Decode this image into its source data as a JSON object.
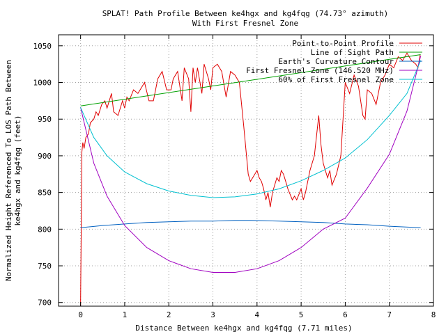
{
  "chart_data": {
    "type": "line",
    "title": "SPLAT! Path Profile Between ke4hgx and kg4fqg (74.73° azimuth)",
    "subtitle": "With First Fresnel Zone",
    "xlabel": "Distance Between ke4hgx and kg4fqg (7.71 miles)",
    "ylabel_line1": "Normalized Height Referenced To LOS Path Between",
    "ylabel_line2": "ke4hgx and kg4fqg (feet)",
    "xlim": [
      -0.5,
      8
    ],
    "ylim": [
      695,
      1065
    ],
    "xticks": [
      0,
      1,
      2,
      3,
      4,
      5,
      6,
      7,
      8
    ],
    "yticks": [
      700,
      750,
      800,
      850,
      900,
      950,
      1000,
      1050
    ],
    "grid": true,
    "legend_position": "top-right",
    "series": [
      {
        "name": "Point-to-Point Profile",
        "color": "#e00000",
        "points": [
          [
            0,
            695
          ],
          [
            0.03,
            905
          ],
          [
            0.05,
            918
          ],
          [
            0.08,
            910
          ],
          [
            0.12,
            925
          ],
          [
            0.18,
            930
          ],
          [
            0.22,
            945
          ],
          [
            0.3,
            950
          ],
          [
            0.35,
            960
          ],
          [
            0.4,
            955
          ],
          [
            0.48,
            970
          ],
          [
            0.55,
            975
          ],
          [
            0.6,
            965
          ],
          [
            0.7,
            985
          ],
          [
            0.75,
            960
          ],
          [
            0.85,
            955
          ],
          [
            0.95,
            975
          ],
          [
            1.0,
            965
          ],
          [
            1.05,
            980
          ],
          [
            1.1,
            975
          ],
          [
            1.2,
            990
          ],
          [
            1.3,
            985
          ],
          [
            1.4,
            995
          ],
          [
            1.45,
            1000
          ],
          [
            1.55,
            975
          ],
          [
            1.65,
            975
          ],
          [
            1.75,
            1005
          ],
          [
            1.85,
            1015
          ],
          [
            1.95,
            990
          ],
          [
            2.05,
            990
          ],
          [
            2.1,
            1005
          ],
          [
            2.2,
            1015
          ],
          [
            2.3,
            975
          ],
          [
            2.35,
            1020
          ],
          [
            2.45,
            1005
          ],
          [
            2.5,
            960
          ],
          [
            2.55,
            1020
          ],
          [
            2.6,
            1000
          ],
          [
            2.65,
            1020
          ],
          [
            2.75,
            985
          ],
          [
            2.8,
            1025
          ],
          [
            2.9,
            1005
          ],
          [
            2.95,
            990
          ],
          [
            3.0,
            1020
          ],
          [
            3.1,
            1025
          ],
          [
            3.2,
            1015
          ],
          [
            3.3,
            980
          ],
          [
            3.4,
            1015
          ],
          [
            3.5,
            1010
          ],
          [
            3.6,
            1000
          ],
          [
            3.7,
            940
          ],
          [
            3.8,
            875
          ],
          [
            3.85,
            865
          ],
          [
            3.95,
            875
          ],
          [
            4.0,
            880
          ],
          [
            4.05,
            870
          ],
          [
            4.1,
            865
          ],
          [
            4.15,
            855
          ],
          [
            4.2,
            840
          ],
          [
            4.25,
            850
          ],
          [
            4.3,
            830
          ],
          [
            4.35,
            850
          ],
          [
            4.45,
            870
          ],
          [
            4.5,
            865
          ],
          [
            4.55,
            880
          ],
          [
            4.6,
            875
          ],
          [
            4.65,
            865
          ],
          [
            4.7,
            855
          ],
          [
            4.8,
            840
          ],
          [
            4.85,
            845
          ],
          [
            4.9,
            840
          ],
          [
            5.0,
            855
          ],
          [
            5.05,
            840
          ],
          [
            5.1,
            850
          ],
          [
            5.2,
            880
          ],
          [
            5.3,
            900
          ],
          [
            5.4,
            955
          ],
          [
            5.45,
            915
          ],
          [
            5.5,
            890
          ],
          [
            5.55,
            880
          ],
          [
            5.6,
            870
          ],
          [
            5.65,
            880
          ],
          [
            5.7,
            860
          ],
          [
            5.8,
            875
          ],
          [
            5.9,
            900
          ],
          [
            6.0,
            1000
          ],
          [
            6.1,
            985
          ],
          [
            6.2,
            1010
          ],
          [
            6.3,
            995
          ],
          [
            6.4,
            955
          ],
          [
            6.45,
            950
          ],
          [
            6.5,
            990
          ],
          [
            6.6,
            985
          ],
          [
            6.7,
            970
          ],
          [
            6.8,
            1000
          ],
          [
            6.9,
            1010
          ],
          [
            7.0,
            1025
          ],
          [
            7.1,
            1020
          ],
          [
            7.2,
            1035
          ],
          [
            7.3,
            1030
          ],
          [
            7.4,
            1040
          ],
          [
            7.5,
            1030
          ],
          [
            7.6,
            1025
          ],
          [
            7.65,
            1020
          ],
          [
            7.7,
            1038
          ]
        ]
      },
      {
        "name": "Line of Sight Path",
        "color": "#00a000",
        "points": [
          [
            0,
            968
          ],
          [
            7.71,
            1038
          ]
        ]
      },
      {
        "name": "Earth's Curvature Contour",
        "color": "#0060c0",
        "points": [
          [
            0,
            802
          ],
          [
            0.5,
            805
          ],
          [
            1,
            807
          ],
          [
            1.5,
            809
          ],
          [
            2,
            810
          ],
          [
            2.5,
            811
          ],
          [
            3,
            811
          ],
          [
            3.5,
            812
          ],
          [
            3.85,
            812
          ],
          [
            4.5,
            811
          ],
          [
            5,
            810
          ],
          [
            5.5,
            809
          ],
          [
            6,
            807
          ],
          [
            6.5,
            806
          ],
          [
            7,
            804
          ],
          [
            7.71,
            802
          ]
        ]
      },
      {
        "name": "First Fresnel Zone (146.520 MHz)",
        "color": "#a000c0",
        "points": [
          [
            0,
            966
          ],
          [
            0.3,
            890
          ],
          [
            0.6,
            845
          ],
          [
            1,
            805
          ],
          [
            1.5,
            775
          ],
          [
            2,
            757
          ],
          [
            2.5,
            746
          ],
          [
            3,
            741
          ],
          [
            3.5,
            741
          ],
          [
            4,
            746
          ],
          [
            4.5,
            757
          ],
          [
            5,
            775
          ],
          [
            5.5,
            800
          ],
          [
            6,
            815
          ],
          [
            6.5,
            856
          ],
          [
            7,
            902
          ],
          [
            7.4,
            961
          ],
          [
            7.71,
            1036
          ]
        ]
      },
      {
        "name": "60% of First Fresnel Zone",
        "color": "#00c0d0",
        "points": [
          [
            0,
            966
          ],
          [
            0.3,
            925
          ],
          [
            0.6,
            900
          ],
          [
            1,
            878
          ],
          [
            1.5,
            862
          ],
          [
            2,
            852
          ],
          [
            2.5,
            846
          ],
          [
            3,
            843
          ],
          [
            3.5,
            844
          ],
          [
            4,
            848
          ],
          [
            4.5,
            855
          ],
          [
            5,
            866
          ],
          [
            5.5,
            880
          ],
          [
            6,
            897
          ],
          [
            6.5,
            922
          ],
          [
            7,
            955
          ],
          [
            7.4,
            985
          ],
          [
            7.71,
            1030
          ]
        ]
      }
    ]
  }
}
